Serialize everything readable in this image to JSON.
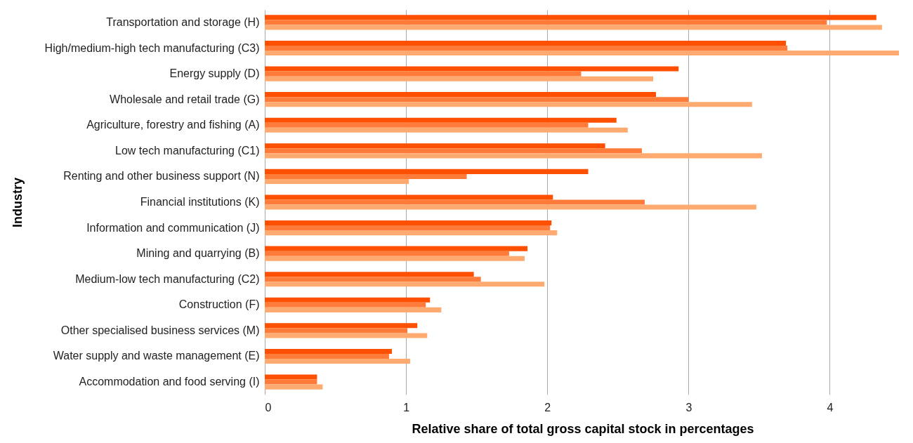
{
  "chart_data": {
    "type": "bar",
    "orientation": "horizontal",
    "xlabel": "Relative share of total gross capital stock in percentages",
    "ylabel": "Industry",
    "categories": [
      "Transportation and storage (H)",
      "High/medium-high tech manufacturing (C3)",
      "Energy supply (D)",
      "Wholesale and retail trade (G)",
      "Agriculture, forestry and fishing (A)",
      "Low tech manufacturing (C1)",
      "Renting and other business support (N)",
      "Financial institutions (K)",
      "Information and communication (J)",
      "Mining and quarrying (B)",
      "Medium-low tech manufacturing (C2)",
      "Construction (F)",
      "Other specialised business services (M)",
      "Water supply and waste management (E)",
      "Accommodation and food serving (I)"
    ],
    "series": [
      {
        "color": "#ff4f00",
        "values": [
          4.33,
          3.69,
          2.93,
          2.77,
          2.49,
          2.41,
          2.29,
          2.04,
          2.03,
          1.86,
          1.48,
          1.17,
          1.08,
          0.9,
          0.37
        ]
      },
      {
        "color": "#ff7b3a",
        "values": [
          3.98,
          3.7,
          2.24,
          3.0,
          2.29,
          2.67,
          1.43,
          2.69,
          2.02,
          1.73,
          1.53,
          1.14,
          1.01,
          0.88,
          0.37
        ]
      },
      {
        "color": "#ffaa70",
        "values": [
          4.37,
          4.49,
          2.75,
          3.45,
          2.57,
          3.52,
          1.02,
          3.48,
          2.07,
          1.84,
          1.98,
          1.25,
          1.15,
          1.03,
          0.41
        ]
      }
    ],
    "xlim": [
      0,
      4.5
    ],
    "xticks": [
      0,
      1,
      2,
      3,
      4
    ],
    "grid": "x"
  }
}
